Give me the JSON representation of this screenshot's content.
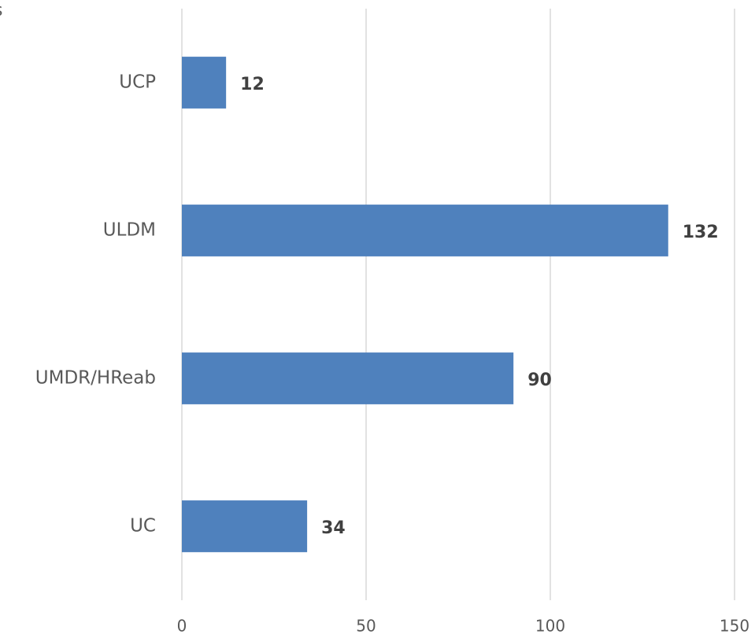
{
  "chart_data": {
    "type": "bar",
    "orientation": "horizontal",
    "title": "s",
    "categories": [
      "UCP",
      "ULDM",
      "UMDR/HReab",
      "UC"
    ],
    "values": [
      12,
      132,
      90,
      34
    ],
    "color": "#4f81bd",
    "xlim": [
      0,
      150
    ],
    "xticks": [
      0,
      50,
      100,
      150
    ],
    "grid": true
  }
}
